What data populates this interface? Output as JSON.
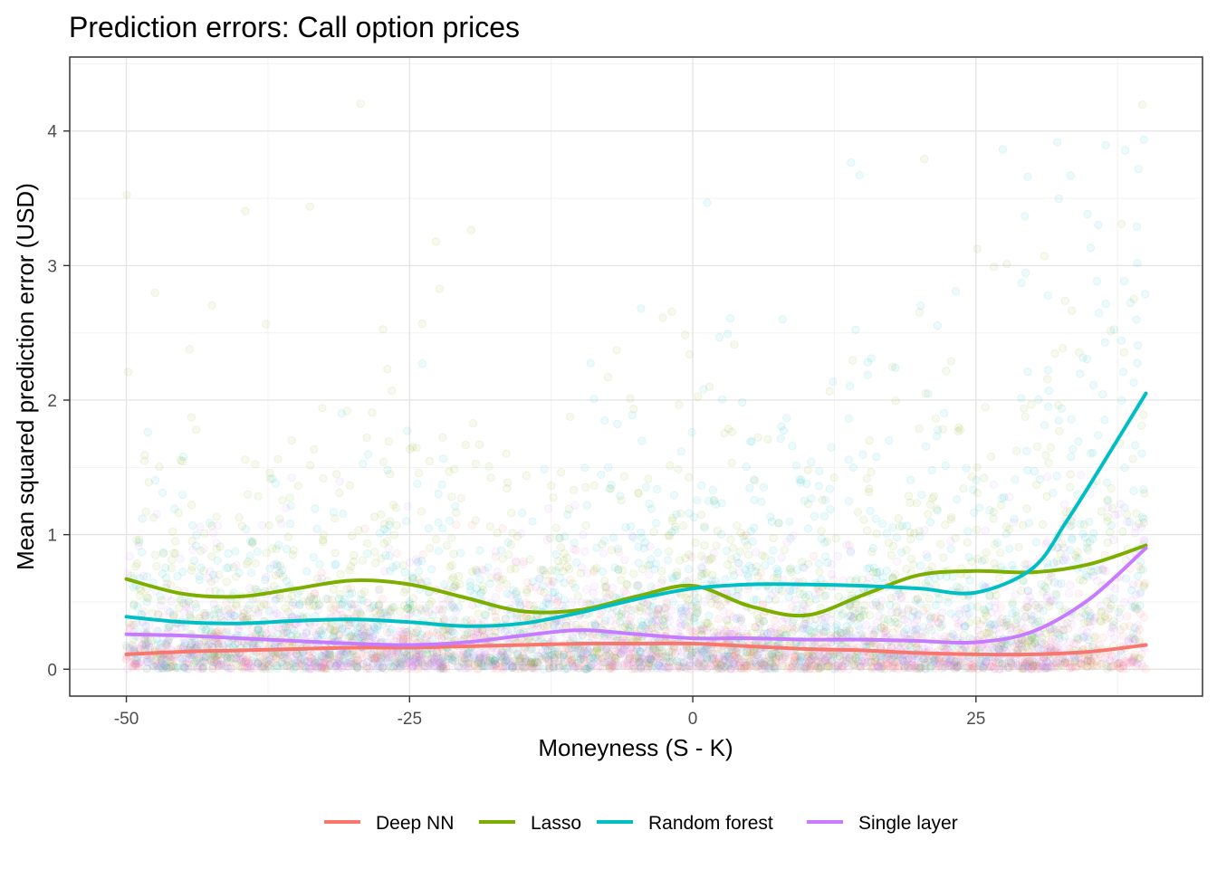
{
  "chart_data": {
    "type": "scatter",
    "title": "Prediction errors: Call option prices",
    "xlabel": "Moneyness (S - K)",
    "ylabel": "Mean squared prediction error (USD)",
    "xlim": [
      -55,
      45
    ],
    "ylim": [
      -0.2,
      4.55
    ],
    "x_ticks": [
      -50,
      -25,
      0,
      25
    ],
    "x_tick_labels": [
      "-50",
      "-25",
      "0",
      "25"
    ],
    "y_ticks": [
      0,
      1,
      2,
      3,
      4
    ],
    "y_tick_labels": [
      "0",
      "1",
      "2",
      "3",
      "4"
    ],
    "grid": true,
    "legend_position": "bottom",
    "series": [
      {
        "name": "Deep NN",
        "color": "#F8766D",
        "smooth": {
          "x": [
            -50,
            -45,
            -40,
            -35,
            -30,
            -25,
            -20,
            -15,
            -10,
            -5,
            0,
            5,
            10,
            15,
            20,
            25,
            30,
            35,
            40
          ],
          "y": [
            0.11,
            0.13,
            0.14,
            0.15,
            0.16,
            0.16,
            0.17,
            0.18,
            0.19,
            0.19,
            0.19,
            0.17,
            0.15,
            0.14,
            0.12,
            0.11,
            0.11,
            0.13,
            0.18
          ]
        },
        "points": {
          "count": 1400,
          "y_mean": 0.15,
          "y_max": 1.2
        }
      },
      {
        "name": "Lasso",
        "color": "#7CAE00",
        "smooth": {
          "x": [
            -50,
            -45,
            -40,
            -35,
            -30,
            -25,
            -20,
            -15,
            -10,
            -5,
            0,
            5,
            10,
            15,
            20,
            25,
            30,
            35,
            40
          ],
          "y": [
            0.67,
            0.56,
            0.54,
            0.6,
            0.66,
            0.63,
            0.53,
            0.43,
            0.44,
            0.54,
            0.62,
            0.47,
            0.4,
            0.55,
            0.7,
            0.73,
            0.72,
            0.78,
            0.92
          ]
        },
        "points": {
          "count": 1400,
          "y_mean": 0.65,
          "y_max": 4.4
        }
      },
      {
        "name": "Random forest",
        "color": "#00BFC4",
        "smooth": {
          "x": [
            -50,
            -45,
            -40,
            -35,
            -30,
            -25,
            -20,
            -15,
            -10,
            -5,
            0,
            5,
            10,
            15,
            20,
            25,
            30,
            33,
            36,
            40
          ],
          "y": [
            0.39,
            0.35,
            0.34,
            0.36,
            0.37,
            0.35,
            0.32,
            0.34,
            0.42,
            0.52,
            0.6,
            0.63,
            0.63,
            0.62,
            0.6,
            0.57,
            0.75,
            1.1,
            1.5,
            2.05
          ]
        },
        "points": {
          "count": 1400,
          "y_mean": 0.5,
          "y_max": 4.0
        }
      },
      {
        "name": "Single layer",
        "color": "#C77CFF",
        "smooth": {
          "x": [
            -50,
            -45,
            -40,
            -35,
            -30,
            -25,
            -20,
            -15,
            -10,
            -5,
            0,
            5,
            10,
            15,
            20,
            25,
            30,
            35,
            40
          ],
          "y": [
            0.26,
            0.25,
            0.23,
            0.21,
            0.19,
            0.18,
            0.2,
            0.25,
            0.29,
            0.26,
            0.23,
            0.23,
            0.22,
            0.22,
            0.21,
            0.2,
            0.28,
            0.52,
            0.9
          ]
        },
        "points": {
          "count": 1400,
          "y_mean": 0.22,
          "y_max": 1.5
        }
      }
    ]
  }
}
